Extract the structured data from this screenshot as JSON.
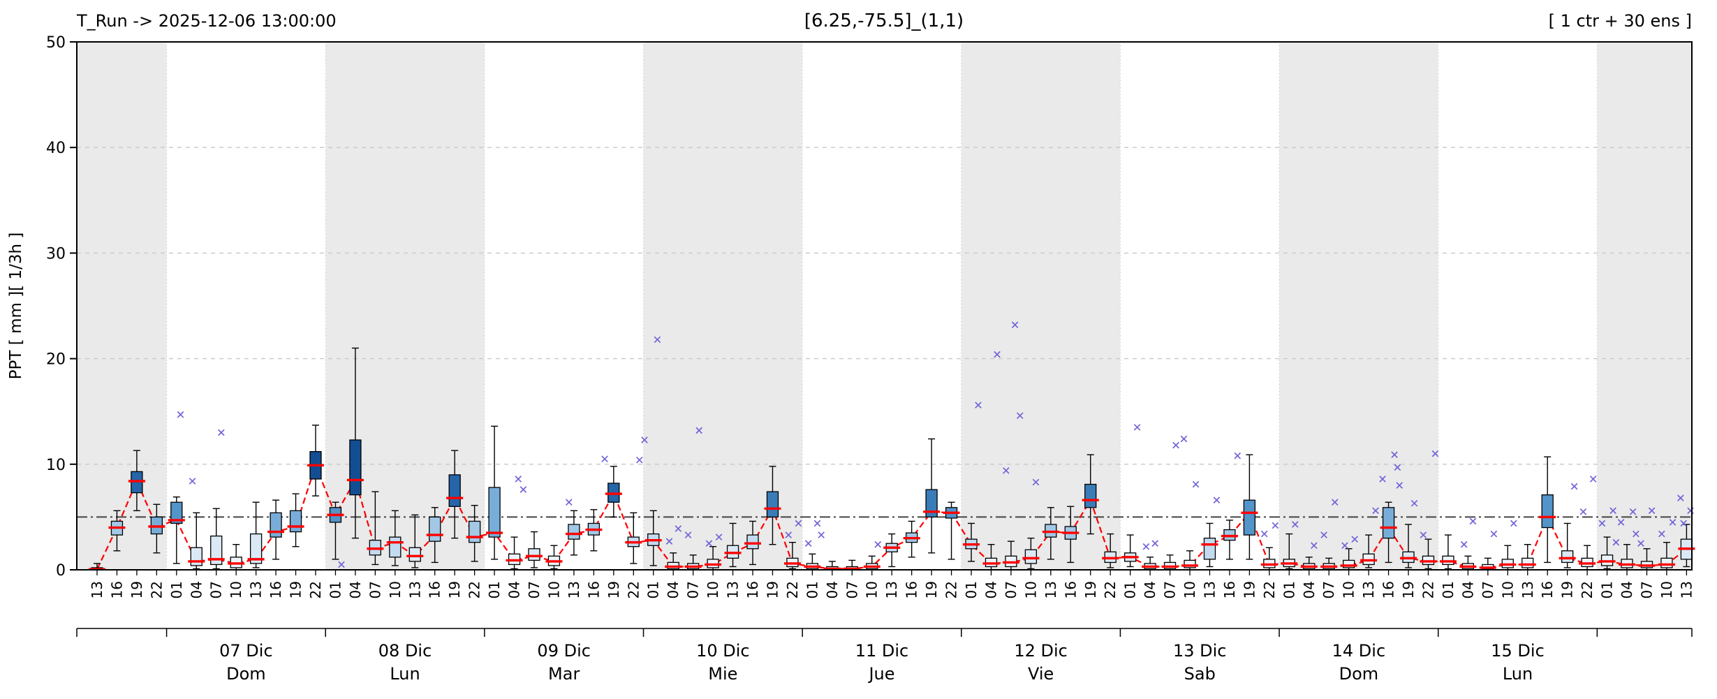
{
  "header": {
    "t_run_label": "T_Run -> 2025-12-06  13:00:00",
    "title": "[6.25,-75.5]_(1,1)",
    "ensemble_label": "[ 1 ctr + 30 ens ]"
  },
  "axes": {
    "ylabel": "PPT  [ mm ][ 1/3h ]",
    "y_ticks": [
      0,
      10,
      20,
      30,
      40,
      50
    ],
    "ylim": [
      0,
      50
    ],
    "threshold_line_y": 5
  },
  "colors": {
    "annotation_red": "#ff0000",
    "control_line": "#ff0000",
    "outlier": "#6f64d8",
    "day_band_gray": "#eaeaea",
    "box_color_scale": [
      {
        "max": 1,
        "color": "#ecf3fb"
      },
      {
        "max": 2,
        "color": "#dbe9f6"
      },
      {
        "max": 3,
        "color": "#c3dbef"
      },
      {
        "max": 4,
        "color": "#a3c8e6"
      },
      {
        "max": 5,
        "color": "#79add9"
      },
      {
        "max": 6,
        "color": "#5394c9"
      },
      {
        "max": 7,
        "color": "#3a7cb8"
      },
      {
        "max": 8.5,
        "color": "#2565a9"
      },
      {
        "max": 10,
        "color": "#134e92"
      },
      {
        "max": 999,
        "color": "#0a2f6d"
      }
    ]
  },
  "chart_data": {
    "type": "boxplot-timeseries",
    "title": "[6.25,-75.5]_(1,1)",
    "ylabel": "PPT  [ mm ][ 1/3h ]",
    "ylim": [
      0,
      50
    ],
    "red_line": "control/median",
    "x_labels": [
      "13",
      "16",
      "19",
      "22",
      "01",
      "04",
      "07",
      "10",
      "13",
      "16",
      "19",
      "22",
      "01",
      "04",
      "07",
      "10",
      "13",
      "16",
      "19",
      "22",
      "01",
      "04",
      "07",
      "10",
      "13",
      "16",
      "19",
      "22",
      "01",
      "04",
      "07",
      "10",
      "13",
      "16",
      "19",
      "22",
      "01",
      "04",
      "07",
      "10",
      "13",
      "16",
      "19",
      "22",
      "01",
      "04",
      "07",
      "10",
      "13",
      "16",
      "19",
      "22",
      "01",
      "04",
      "07",
      "10",
      "13",
      "16",
      "19",
      "22",
      "01",
      "04",
      "07",
      "10",
      "13",
      "16",
      "19",
      "22",
      "01",
      "04",
      "07",
      "10",
      "13",
      "16",
      "19",
      "22",
      "01",
      "04",
      "07",
      "10",
      "13"
    ],
    "days": [
      {
        "label": "",
        "weekday": "",
        "start_index": 0,
        "end_index": 3,
        "shaded": true
      },
      {
        "label": "07 Dic",
        "weekday": "Dom",
        "start_index": 4,
        "end_index": 11,
        "shaded": false
      },
      {
        "label": "08 Dic",
        "weekday": "Lun",
        "start_index": 12,
        "end_index": 19,
        "shaded": true
      },
      {
        "label": "09 Dic",
        "weekday": "Mar",
        "start_index": 20,
        "end_index": 27,
        "shaded": false
      },
      {
        "label": "10 Dic",
        "weekday": "Mie",
        "start_index": 28,
        "end_index": 35,
        "shaded": true
      },
      {
        "label": "11 Dic",
        "weekday": "Jue",
        "start_index": 36,
        "end_index": 43,
        "shaded": false
      },
      {
        "label": "12 Dic",
        "weekday": "Vie",
        "start_index": 44,
        "end_index": 51,
        "shaded": true
      },
      {
        "label": "13 Dic",
        "weekday": "Sab",
        "start_index": 52,
        "end_index": 59,
        "shaded": false
      },
      {
        "label": "14 Dic",
        "weekday": "Dom",
        "start_index": 60,
        "end_index": 67,
        "shaded": true
      },
      {
        "label": "15 Dic",
        "weekday": "Lun",
        "start_index": 68,
        "end_index": 75,
        "shaded": false
      },
      {
        "label": "",
        "weekday": "",
        "start_index": 76,
        "end_index": 80,
        "shaded": true
      }
    ],
    "boxes": {
      "lo": [
        0,
        1.8,
        5.6,
        1.6,
        0.6,
        0.1,
        0.1,
        0,
        0.2,
        1.0,
        2.2,
        7.0,
        1.0,
        3.0,
        0.5,
        0.4,
        0.2,
        0.7,
        3.0,
        0.8,
        1.0,
        0.1,
        0.2,
        0.1,
        1.4,
        1.8,
        5.0,
        0.6,
        0.4,
        0,
        0,
        0,
        0.3,
        0.5,
        2.4,
        0.1,
        0,
        0,
        0,
        0,
        0.3,
        1.2,
        1.6,
        1.0,
        0.8,
        0,
        0,
        0.1,
        1.0,
        0.7,
        3.4,
        0.2,
        0.3,
        0,
        0,
        0,
        0.3,
        1.0,
        1.0,
        0,
        0.1,
        0,
        0,
        0,
        0.2,
        0.7,
        0.2,
        0.1,
        0.1,
        0,
        0,
        0,
        0,
        0.7,
        0.2,
        0,
        0.1,
        0,
        0,
        0,
        0.3
      ],
      "q1": [
        0,
        3.3,
        7.3,
        3.4,
        4.4,
        0.4,
        0.5,
        0.2,
        0.6,
        3.1,
        3.6,
        8.6,
        4.5,
        7.1,
        1.4,
        1.2,
        0.8,
        2.7,
        6.0,
        2.6,
        3.1,
        0.5,
        0.9,
        0.4,
        2.9,
        3.3,
        6.4,
        2.2,
        2.3,
        0.1,
        0.1,
        0.2,
        1.1,
        2.0,
        5.0,
        0.3,
        0.1,
        0,
        0,
        0.1,
        1.7,
        2.6,
        5.0,
        4.9,
        2.0,
        0.3,
        0.3,
        0.6,
        3.1,
        2.9,
        5.9,
        0.7,
        0.8,
        0.1,
        0.1,
        0.2,
        1.0,
        2.8,
        3.3,
        0.2,
        0.3,
        0.1,
        0.1,
        0.2,
        0.5,
        3.0,
        0.7,
        0.5,
        0.5,
        0.1,
        0.1,
        0.2,
        0.2,
        4.0,
        0.7,
        0.3,
        0.4,
        0.2,
        0.2,
        0.2,
        1.0
      ],
      "med": [
        0.05,
        4.0,
        8.4,
        4.1,
        4.7,
        0.8,
        1.0,
        0.6,
        1.0,
        3.6,
        4.1,
        9.9,
        5.2,
        8.5,
        2.0,
        2.6,
        1.3,
        3.3,
        6.8,
        3.1,
        3.5,
        0.9,
        1.3,
        0.8,
        3.4,
        3.8,
        7.2,
        2.6,
        2.8,
        0.3,
        0.3,
        0.5,
        1.6,
        2.5,
        5.8,
        0.6,
        0.3,
        0.1,
        0.1,
        0.3,
        2.1,
        3.0,
        5.5,
        5.4,
        2.4,
        0.6,
        0.7,
        1.1,
        3.6,
        3.5,
        6.6,
        1.1,
        1.2,
        0.3,
        0.3,
        0.4,
        2.4,
        3.2,
        5.4,
        0.5,
        0.6,
        0.3,
        0.3,
        0.4,
        0.9,
        4.0,
        1.1,
        0.8,
        0.8,
        0.3,
        0.2,
        0.5,
        0.5,
        5.0,
        1.1,
        0.6,
        0.8,
        0.5,
        0.4,
        0.5,
        2.0
      ],
      "q3": [
        0.2,
        4.6,
        9.3,
        5.0,
        6.4,
        2.1,
        3.2,
        1.2,
        3.4,
        5.4,
        5.6,
        11.2,
        5.9,
        12.3,
        2.8,
        3.1,
        2.1,
        5.0,
        9.0,
        4.6,
        7.8,
        1.5,
        2.0,
        1.3,
        4.3,
        4.4,
        8.2,
        3.1,
        3.4,
        0.7,
        0.6,
        1.0,
        2.3,
        3.3,
        7.4,
        1.1,
        0.6,
        0.3,
        0.3,
        0.6,
        2.5,
        3.5,
        7.6,
        5.9,
        2.9,
        1.1,
        1.3,
        1.9,
        4.3,
        4.1,
        8.1,
        1.7,
        1.6,
        0.6,
        0.7,
        0.9,
        3.0,
        3.8,
        6.6,
        1.0,
        1.0,
        0.6,
        0.6,
        0.9,
        1.5,
        5.9,
        1.7,
        1.3,
        1.3,
        0.6,
        0.5,
        1.0,
        1.1,
        7.1,
        1.8,
        1.1,
        1.4,
        1.0,
        0.8,
        1.1,
        2.9
      ],
      "hi": [
        0.6,
        5.6,
        11.3,
        6.2,
        6.9,
        5.4,
        5.8,
        2.4,
        6.4,
        6.6,
        7.2,
        13.7,
        6.4,
        21.0,
        7.4,
        5.6,
        5.2,
        5.9,
        11.3,
        6.1,
        13.6,
        3.1,
        3.6,
        2.3,
        5.6,
        5.7,
        9.8,
        5.4,
        5.6,
        1.6,
        1.4,
        2.2,
        4.4,
        4.6,
        9.8,
        2.6,
        1.5,
        0.8,
        0.9,
        1.3,
        3.4,
        4.6,
        12.4,
        6.4,
        4.4,
        2.4,
        2.7,
        3.0,
        5.9,
        6.0,
        10.9,
        3.4,
        3.3,
        1.2,
        1.4,
        1.8,
        4.4,
        4.7,
        10.9,
        2.1,
        3.4,
        1.2,
        1.1,
        2.0,
        3.3,
        6.4,
        4.3,
        2.9,
        3.3,
        1.3,
        1.1,
        2.3,
        2.4,
        10.7,
        4.4,
        2.3,
        3.1,
        2.4,
        2.0,
        2.6,
        4.3
      ]
    },
    "outliers": [
      [
        4,
        0.2,
        14.7
      ],
      [
        5,
        -0.2,
        8.4
      ],
      [
        6,
        0.25,
        13.0
      ],
      [
        12,
        0.3,
        0.5
      ],
      [
        21,
        0.2,
        8.6
      ],
      [
        21,
        0.45,
        7.6
      ],
      [
        24,
        -0.25,
        6.4
      ],
      [
        26,
        -0.45,
        10.5
      ],
      [
        27,
        0.3,
        10.4
      ],
      [
        28,
        -0.45,
        12.3
      ],
      [
        28,
        0.2,
        21.8
      ],
      [
        29,
        0.25,
        3.9
      ],
      [
        29,
        -0.2,
        2.7
      ],
      [
        30,
        0.3,
        13.2
      ],
      [
        30,
        -0.25,
        3.3
      ],
      [
        31,
        0.3,
        3.1
      ],
      [
        31,
        -0.2,
        2.5
      ],
      [
        35,
        0.3,
        4.4
      ],
      [
        35,
        -0.2,
        3.3
      ],
      [
        36,
        0.25,
        4.4
      ],
      [
        36,
        0.45,
        3.3
      ],
      [
        36,
        -0.2,
        2.5
      ],
      [
        39,
        0.3,
        2.4
      ],
      [
        44,
        0.35,
        15.6
      ],
      [
        45,
        0.3,
        20.4
      ],
      [
        46,
        0.2,
        23.2
      ],
      [
        46,
        0.45,
        14.6
      ],
      [
        46,
        -0.25,
        9.4
      ],
      [
        47,
        0.25,
        8.3
      ],
      [
        52,
        0.35,
        13.5
      ],
      [
        53,
        0.25,
        2.5
      ],
      [
        53,
        -0.2,
        2.2
      ],
      [
        54,
        0.3,
        11.8
      ],
      [
        55,
        -0.3,
        12.4
      ],
      [
        55,
        0.3,
        8.1
      ],
      [
        56,
        0.35,
        6.6
      ],
      [
        57,
        0.4,
        10.8
      ],
      [
        59,
        0.3,
        4.2
      ],
      [
        59,
        -0.25,
        3.4
      ],
      [
        60,
        0.3,
        4.3
      ],
      [
        61,
        0.25,
        2.3
      ],
      [
        62,
        0.3,
        6.4
      ],
      [
        62,
        -0.25,
        3.3
      ],
      [
        63,
        0.3,
        2.9
      ],
      [
        63,
        -0.2,
        2.3
      ],
      [
        64,
        0.35,
        5.6
      ],
      [
        65,
        0.3,
        10.9
      ],
      [
        65,
        0.45,
        9.7
      ],
      [
        65,
        -0.3,
        8.6
      ],
      [
        66,
        -0.45,
        8.0
      ],
      [
        66,
        0.3,
        6.3
      ],
      [
        67,
        0.35,
        11.0
      ],
      [
        67,
        -0.25,
        3.3
      ],
      [
        69,
        0.25,
        4.6
      ],
      [
        69,
        -0.2,
        2.4
      ],
      [
        70,
        0.3,
        3.4
      ],
      [
        71,
        0.3,
        4.4
      ],
      [
        74,
        0.35,
        7.9
      ],
      [
        75,
        0.3,
        8.6
      ],
      [
        75,
        -0.2,
        5.5
      ],
      [
        76,
        0.3,
        5.6
      ],
      [
        76,
        -0.25,
        4.4
      ],
      [
        76,
        0.45,
        2.6
      ],
      [
        77,
        0.3,
        5.5
      ],
      [
        77,
        -0.3,
        4.5
      ],
      [
        77,
        0.45,
        3.4
      ],
      [
        78,
        0.25,
        5.6
      ],
      [
        78,
        -0.3,
        2.5
      ],
      [
        79,
        0.3,
        4.5
      ],
      [
        79,
        -0.25,
        3.4
      ],
      [
        80,
        0.2,
        5.6
      ],
      [
        80,
        -0.3,
        6.8
      ],
      [
        80,
        -0.15,
        4.4
      ]
    ]
  }
}
